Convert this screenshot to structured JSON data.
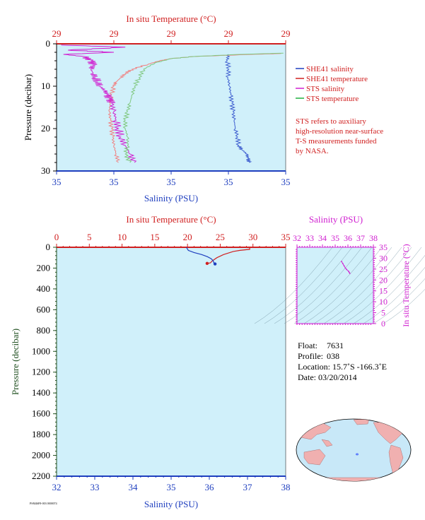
{
  "chart_data": [
    {
      "id": "upper",
      "type": "line",
      "top_axis_label": "In situ Temperature (°C)",
      "top_ticks": [
        "29",
        "29",
        "29",
        "29",
        "29"
      ],
      "bottom_axis_label": "Salinity (PSU)",
      "bottom_ticks": [
        "35",
        "35",
        "35",
        "35",
        "35"
      ],
      "y_axis_label": "Pressure (decibar)",
      "y_ticks": [
        "0",
        "10",
        "20",
        "30"
      ],
      "ylim": [
        0,
        30
      ],
      "legend": [
        {
          "name": "SHE41 salinity",
          "color": "#1f3fbf"
        },
        {
          "name": "SHE41 temperature",
          "color": "#d02020"
        },
        {
          "name": "STS salinity",
          "color": "#d020d0"
        },
        {
          "name": "STS temperature",
          "color": "#20b040"
        }
      ],
      "note": [
        "STS refers to auxiliary",
        "high-resolution near-surface",
        "T-S measurements funded",
        "by NASA."
      ],
      "series": [
        {
          "id": "she41_salinity",
          "color": "#4060d0",
          "points": [
            [
              0.75,
              2.5
            ],
            [
              0.745,
              4
            ],
            [
              0.752,
              6
            ],
            [
              0.748,
              8
            ],
            [
              0.755,
              10
            ],
            [
              0.76,
              12
            ],
            [
              0.765,
              14
            ],
            [
              0.77,
              16
            ],
            [
              0.775,
              18
            ],
            [
              0.78,
              20
            ],
            [
              0.79,
              22
            ],
            [
              0.795,
              24
            ],
            [
              0.81,
              25
            ],
            [
              0.83,
              26
            ],
            [
              0.835,
              27
            ],
            [
              0.84,
              28
            ]
          ]
        },
        {
          "id": "she41_temperature",
          "color": "#f08080",
          "points": [
            [
              0.98,
              2.3
            ],
            [
              0.85,
              2.5
            ],
            [
              0.6,
              3
            ],
            [
              0.5,
              3.5
            ],
            [
              0.45,
              4
            ],
            [
              0.4,
              4.8
            ],
            [
              0.33,
              6
            ],
            [
              0.3,
              7
            ],
            [
              0.28,
              8
            ],
            [
              0.26,
              9
            ],
            [
              0.25,
              10
            ],
            [
              0.24,
              12
            ],
            [
              0.235,
              14
            ],
            [
              0.23,
              16
            ],
            [
              0.235,
              18
            ],
            [
              0.24,
              20
            ],
            [
              0.245,
              22
            ],
            [
              0.25,
              24
            ],
            [
              0.26,
              26
            ],
            [
              0.27,
              28
            ]
          ]
        },
        {
          "id": "sts_salinity",
          "color": "#d020d0",
          "points": [
            [
              0.02,
              0.3
            ],
            [
              0.3,
              0.8
            ],
            [
              0.05,
              1.5
            ],
            [
              0.25,
              2
            ],
            [
              0.03,
              2.5
            ],
            [
              0.12,
              3
            ],
            [
              0.15,
              4
            ],
            [
              0.16,
              5
            ],
            [
              0.15,
              6
            ],
            [
              0.16,
              7
            ],
            [
              0.17,
              8
            ],
            [
              0.18,
              9
            ],
            [
              0.19,
              10
            ],
            [
              0.21,
              11
            ],
            [
              0.22,
              12
            ],
            [
              0.23,
              13
            ],
            [
              0.24,
              14
            ],
            [
              0.25,
              16
            ],
            [
              0.26,
              18
            ],
            [
              0.27,
              20
            ],
            [
              0.28,
              22
            ],
            [
              0.3,
              24
            ],
            [
              0.32,
              26
            ],
            [
              0.34,
              28
            ]
          ]
        },
        {
          "id": "sts_temperature",
          "color": "#80c880",
          "points": [
            [
              0.99,
              2.2
            ],
            [
              0.8,
              2.5
            ],
            [
              0.6,
              3
            ],
            [
              0.5,
              3.5
            ],
            [
              0.43,
              4.5
            ],
            [
              0.38,
              6
            ],
            [
              0.36,
              8
            ],
            [
              0.34,
              10
            ],
            [
              0.33,
              12
            ],
            [
              0.32,
              14
            ],
            [
              0.31,
              16
            ],
            [
              0.3,
              18
            ],
            [
              0.3,
              20
            ],
            [
              0.31,
              22
            ],
            [
              0.31,
              24
            ],
            [
              0.3,
              26
            ],
            [
              0.32,
              28
            ]
          ]
        }
      ]
    },
    {
      "id": "lower",
      "type": "line",
      "top_axis_label": "In situ Temperature (°C)",
      "top_ticks": [
        "0",
        "5",
        "10",
        "15",
        "20",
        "25",
        "30",
        "35"
      ],
      "xlim_temperature": [
        0,
        35
      ],
      "bottom_axis_label": "Salinity (PSU)",
      "bottom_ticks": [
        "32",
        "33",
        "34",
        "35",
        "36",
        "37",
        "38"
      ],
      "xlim_salinity": [
        32,
        38
      ],
      "y_axis_label": "Pressure (decibar)",
      "y_ticks": [
        "0",
        "200",
        "400",
        "600",
        "800",
        "1000",
        "1200",
        "1400",
        "1600",
        "1800",
        "2000",
        "2200"
      ],
      "ylim": [
        0,
        2200
      ],
      "series": [
        {
          "id": "temperature_profile",
          "name": "SHE41 temperature",
          "color": "#d02020",
          "axis": "temperature",
          "points": [
            [
              29.5,
              0
            ],
            [
              29.5,
              20
            ],
            [
              28,
              30
            ],
            [
              27,
              40
            ],
            [
              25.5,
              70
            ],
            [
              24.5,
              100
            ],
            [
              23.8,
              130
            ],
            [
              23.5,
              150
            ],
            [
              23.0,
              155
            ]
          ]
        },
        {
          "id": "salinity_profile",
          "name": "SHE41 salinity",
          "color": "#1f3fbf",
          "axis": "salinity",
          "points": [
            [
              35.4,
              0
            ],
            [
              35.45,
              30
            ],
            [
              35.6,
              50
            ],
            [
              35.8,
              70
            ],
            [
              35.95,
              90
            ],
            [
              36.05,
              110
            ],
            [
              36.1,
              130
            ],
            [
              36.12,
              150
            ],
            [
              36.15,
              160
            ]
          ]
        }
      ],
      "markers": [
        {
          "x_temp": 23.0,
          "y": 155,
          "color": "#d02020"
        },
        {
          "x_sal": 36.15,
          "y": 160,
          "color": "#1f3fbf"
        }
      ]
    },
    {
      "id": "ts_diagram",
      "type": "scatter",
      "top_axis_label": "Salinity (PSU)",
      "top_ticks": [
        "32",
        "33",
        "34",
        "35",
        "36",
        "37",
        "38"
      ],
      "xlim": [
        32,
        38
      ],
      "y_axis_label": "In situ Temperature (°C)",
      "y_ticks": [
        "0",
        "5",
        "10",
        "15",
        "20",
        "25",
        "30",
        "35"
      ],
      "ylim": [
        0,
        35
      ],
      "points": [
        [
          35.5,
          28.5
        ],
        [
          35.6,
          27.5
        ],
        [
          35.7,
          26.5
        ],
        [
          35.8,
          25.5
        ],
        [
          35.9,
          24.8
        ],
        [
          36.05,
          24.0
        ],
        [
          36.1,
          23.5
        ],
        [
          36.15,
          23.0
        ]
      ],
      "color": "#d020d0"
    }
  ],
  "float_info": {
    "float_label": "Float:",
    "float_value": "7631",
    "profile_label": "Profile:",
    "profile_value": "038",
    "location_label": "Location:",
    "location_value": "15.7˚S  -166.3˚E",
    "date_label": "Date:",
    "date_value": "03/20/2014"
  },
  "map": {
    "marker_lon": -166.3,
    "marker_lat": -15.7,
    "marker_color": "#2040ff",
    "ocean_color": "#c8e8f8",
    "land_color": "#f0b0b0"
  },
  "footer_code": "PSM46F8-003 0000074",
  "colors": {
    "plot_bg": "#d0f0fa",
    "temperature_axis": "#d02020",
    "salinity_axis": "#1f3fbf",
    "pressure_axis": "#205020",
    "ts_axis": "#d020d0"
  }
}
